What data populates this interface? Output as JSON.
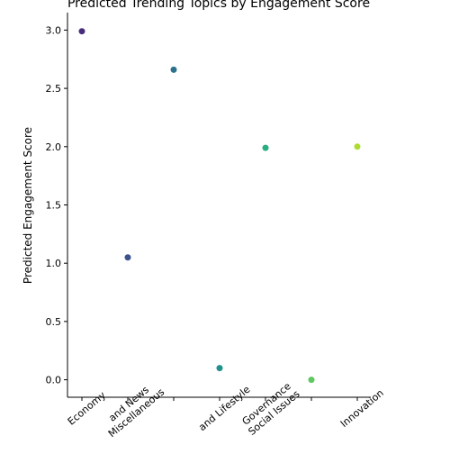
{
  "chart_data": {
    "type": "scatter",
    "title": "Predicted Trending Topics by Engagement Score",
    "xlabel": "",
    "ylabel": "Predicted Engagement Score",
    "categories": [
      "Economy",
      "and News\nMiscellaneous",
      "",
      "and Lifestyle",
      "Governance\nSocial Issues",
      "",
      "Innovation"
    ],
    "values": [
      2.99,
      1.05,
      2.66,
      0.1,
      1.99,
      0.0,
      2.0
    ],
    "point_colors": [
      "#472d7b",
      "#3b528b",
      "#2c728e",
      "#21918c",
      "#28ae80",
      "#5ec962",
      "#addc30"
    ],
    "ylim": [
      -0.15,
      3.15
    ],
    "yticks": [
      0.0,
      0.5,
      1.0,
      1.5,
      2.0,
      2.5,
      3.0
    ],
    "ytick_labels": [
      "0.0",
      "0.5",
      "1.0",
      "1.5",
      "2.0",
      "2.5",
      "3.0"
    ],
    "grid": false,
    "legend": "none"
  }
}
